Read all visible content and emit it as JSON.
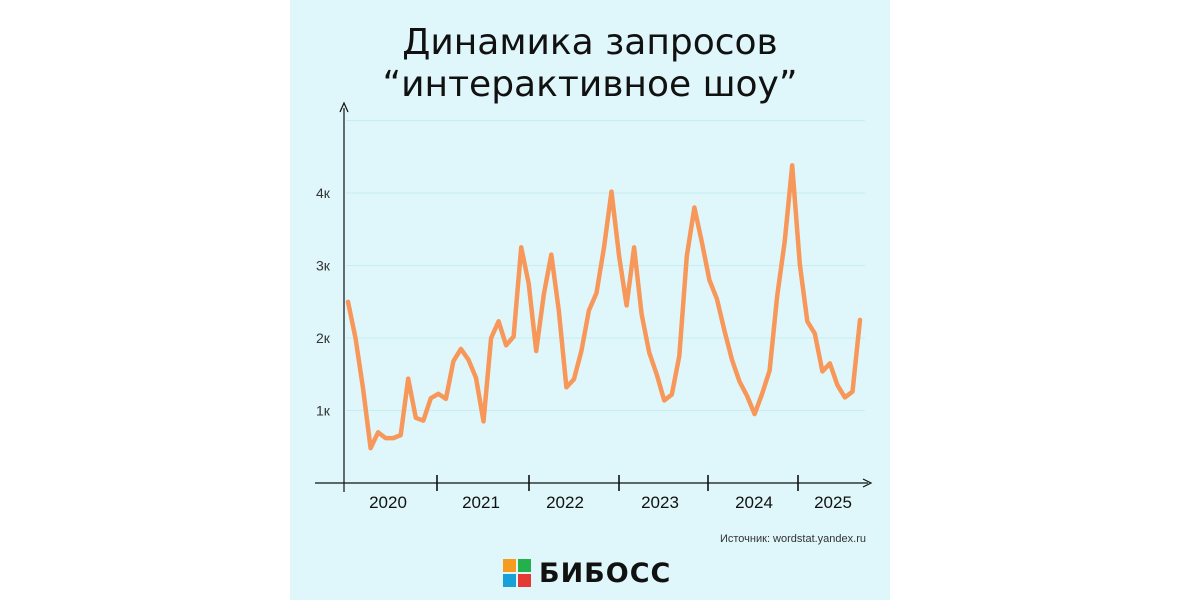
{
  "title_line1": "Динамика запросов",
  "title_line2": "“интерактивное шоу”",
  "source": "Источник: wordstat.yandex.ru",
  "brand": {
    "name": "БИБОСС"
  },
  "colors": {
    "background": "#dff7fa",
    "line": "#f7975a",
    "grid": "#c5eef1",
    "axis": "#111111",
    "logo_orange": "#f59b1f",
    "logo_green": "#22b14c",
    "logo_blue": "#1aa0d8",
    "logo_red": "#e53935"
  },
  "chart_data": {
    "type": "line",
    "title": "Динамика запросов “интерактивное шоу”",
    "xlabel": "",
    "ylabel": "",
    "ylim": [
      0,
      5000
    ],
    "yticks": [
      {
        "value": 1000,
        "label": "1к"
      },
      {
        "value": 2000,
        "label": "2к"
      },
      {
        "value": 3000,
        "label": "3к"
      },
      {
        "value": 4000,
        "label": "4к"
      }
    ],
    "year_labels": [
      "2020",
      "2021",
      "2022",
      "2023",
      "2024",
      "2025"
    ],
    "grid": true,
    "legend": "none",
    "series": [
      {
        "values": [
          2500,
          2000,
          1300,
          480,
          700,
          620,
          620,
          660,
          1440,
          900,
          860,
          1170,
          1230,
          1160,
          1680,
          1850,
          1700,
          1450,
          850,
          2000,
          2230,
          1900,
          2020,
          3250,
          2750,
          1820,
          2600,
          3150,
          2380,
          1320,
          1430,
          1820,
          2380,
          2620,
          3250,
          4020,
          3130,
          2450,
          3250,
          2330,
          1800,
          1500,
          1140,
          1220,
          1750,
          3130,
          3800,
          3320,
          2800,
          2540,
          2100,
          1700,
          1400,
          1200,
          950,
          1230,
          1550,
          2580,
          3330,
          4380,
          3020,
          2230,
          2060,
          1540,
          1650,
          1350,
          1180,
          1260,
          2250
        ]
      }
    ]
  }
}
